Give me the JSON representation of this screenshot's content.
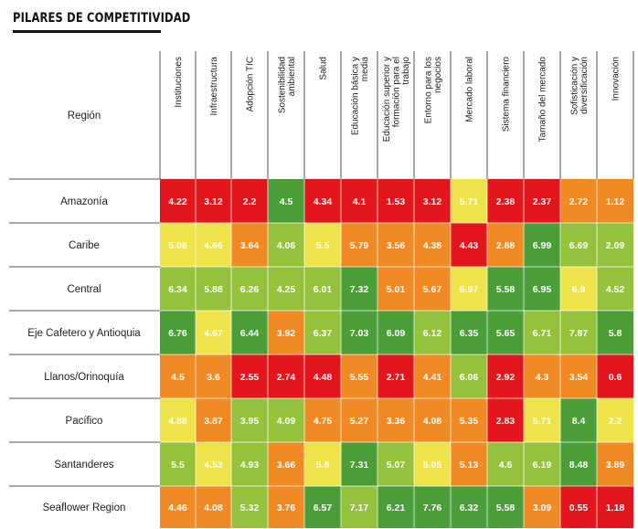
{
  "title": "PILARES DE COMPETITIVIDAD",
  "chart_data": {
    "type": "heatmap",
    "row_header": "Región",
    "columns": [
      "Instituciones",
      "Infraestructura",
      "Adopción TIC",
      "Sostenibilidad ambiental",
      "Salud",
      "Educación básica y media",
      "Educación superior y formación para el trabajo",
      "Entorno para los negocios",
      "Mercado laboral",
      "Sistema financiero",
      "Tamaño del mercado",
      "Sofisticación y diversificación",
      "Innovación"
    ],
    "rows": [
      {
        "name": "Amazonía",
        "values": [
          "4.22",
          "3.12",
          "2.2",
          "4.5",
          "4.34",
          "4.1",
          "1.53",
          "3.12",
          "5.71",
          "2.38",
          "2.37",
          "2.72",
          "1.12"
        ]
      },
      {
        "name": "Caribe",
        "values": [
          "5.06",
          "4.66",
          "3.64",
          "4.06",
          "5.5",
          "5.79",
          "3.56",
          "4.38",
          "4.43",
          "2.88",
          "6.99",
          "6.69",
          "2.09"
        ]
      },
      {
        "name": "Central",
        "values": [
          "6.34",
          "5.88",
          "6.26",
          "4.25",
          "6.01",
          "7.32",
          "5.01",
          "5.67",
          "6.97",
          "5.58",
          "6.95",
          "6.9",
          "4.52"
        ]
      },
      {
        "name": "Eje Cafetero y Antioquia",
        "values": [
          "6.76",
          "4.67",
          "6.44",
          "3.92",
          "6.37",
          "7.03",
          "6.09",
          "6.12",
          "6.35",
          "5.65",
          "6.71",
          "7.87",
          "5.8"
        ]
      },
      {
        "name": "Llanos/Orinoquía",
        "values": [
          "4.5",
          "3.6",
          "2.55",
          "2.74",
          "4.48",
          "5.55",
          "2.71",
          "4.41",
          "6.06",
          "2.92",
          "4.3",
          "3.54",
          "0.6"
        ]
      },
      {
        "name": "Pacífico",
        "values": [
          "4.88",
          "3.87",
          "3.95",
          "4.09",
          "4.75",
          "5.27",
          "3.36",
          "4.08",
          "5.35",
          "2.83",
          "5.71",
          "8.4",
          "2.2"
        ]
      },
      {
        "name": "Santanderes",
        "values": [
          "5.5",
          "4.53",
          "4.93",
          "3.66",
          "5.8",
          "7.31",
          "5.07",
          "5.05",
          "5.13",
          "4.6",
          "6.19",
          "8.48",
          "3.89"
        ]
      },
      {
        "name": "Seaflower Region",
        "values": [
          "4.46",
          "4.08",
          "5.32",
          "3.76",
          "6.57",
          "7.17",
          "6.21",
          "7.76",
          "6.32",
          "5.58",
          "3.09",
          "0.55",
          "1.18"
        ]
      }
    ],
    "colors": {
      "dark_green": "#4c9f38",
      "light_green": "#95c23d",
      "yellow": "#eee34a",
      "orange": "#f08a24",
      "red": "#e4161d"
    },
    "cell_colors": [
      [
        "red",
        "red",
        "red",
        "dark_green",
        "red",
        "red",
        "red",
        "red",
        "yellow",
        "red",
        "red",
        "orange",
        "orange"
      ],
      [
        "yellow",
        "yellow",
        "orange",
        "light_green",
        "yellow",
        "orange",
        "orange",
        "orange",
        "red",
        "orange",
        "dark_green",
        "light_green",
        "light_green"
      ],
      [
        "light_green",
        "light_green",
        "light_green",
        "light_green",
        "light_green",
        "dark_green",
        "orange",
        "orange",
        "yellow",
        "dark_green",
        "dark_green",
        "yellow",
        "light_green"
      ],
      [
        "dark_green",
        "yellow",
        "dark_green",
        "orange",
        "light_green",
        "dark_green",
        "dark_green",
        "light_green",
        "dark_green",
        "dark_green",
        "light_green",
        "light_green",
        "dark_green"
      ],
      [
        "orange",
        "orange",
        "red",
        "red",
        "red",
        "orange",
        "red",
        "orange",
        "light_green",
        "red",
        "orange",
        "orange",
        "red"
      ],
      [
        "yellow",
        "orange",
        "light_green",
        "light_green",
        "orange",
        "orange",
        "orange",
        "orange",
        "orange",
        "red",
        "yellow",
        "dark_green",
        "yellow"
      ],
      [
        "light_green",
        "yellow",
        "light_green",
        "orange",
        "yellow",
        "dark_green",
        "light_green",
        "yellow",
        "orange",
        "light_green",
        "light_green",
        "dark_green",
        "orange"
      ],
      [
        "orange",
        "orange",
        "light_green",
        "orange",
        "dark_green",
        "light_green",
        "dark_green",
        "dark_green",
        "dark_green",
        "dark_green",
        "orange",
        "red",
        "red"
      ]
    ]
  }
}
